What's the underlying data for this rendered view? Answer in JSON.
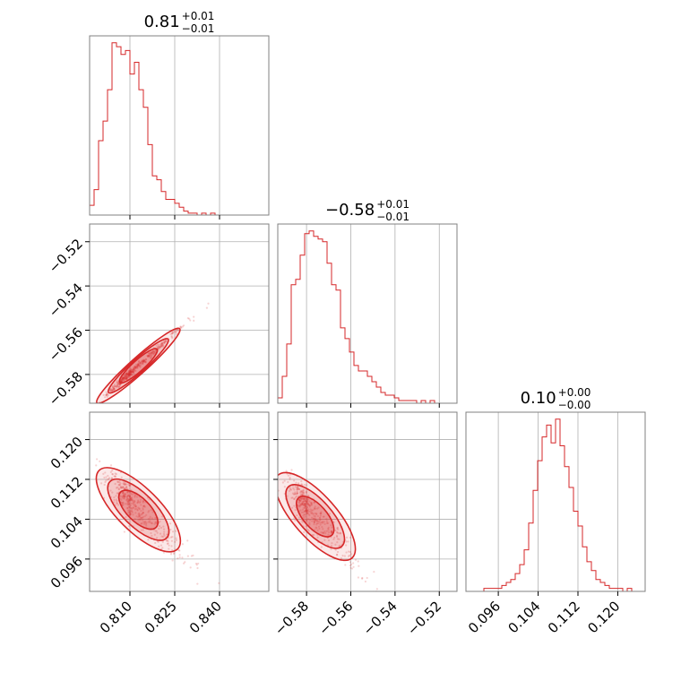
{
  "chart_data": {
    "type": "corner",
    "color": "#d62728",
    "grid": true,
    "parameters": [
      {
        "index": 0,
        "median": "0.81",
        "plus": "+0.01",
        "minus": "−0.01",
        "range": [
          0.7965,
          0.8565
        ],
        "ticks": [
          0.81,
          0.825,
          0.84
        ],
        "tick_labels": [
          "0.810",
          "0.825",
          "0.840"
        ]
      },
      {
        "index": 1,
        "median": "−0.58",
        "plus": "+0.01",
        "minus": "−0.01",
        "range": [
          -0.593,
          -0.512
        ],
        "ticks": [
          -0.58,
          -0.56,
          -0.54,
          -0.52
        ],
        "tick_labels": [
          "−0.58",
          "−0.56",
          "−0.54",
          "−0.52"
        ]
      },
      {
        "index": 2,
        "median": "0.10",
        "plus": "+0.00",
        "minus": "−0.00",
        "range": [
          0.0895,
          0.1255
        ],
        "ticks": [
          0.096,
          0.104,
          0.112,
          0.12
        ],
        "tick_labels": [
          "0.096",
          "0.104",
          "0.112",
          "0.120"
        ]
      }
    ],
    "histograms": [
      {
        "param": 0,
        "counts": [
          5,
          13,
          38,
          48,
          64,
          88,
          86,
          82,
          84,
          72,
          78,
          64,
          55,
          36,
          20,
          18,
          12,
          8,
          8,
          6,
          4,
          2,
          1,
          1,
          0,
          1,
          0,
          1,
          0,
          0,
          0,
          0,
          0,
          0,
          0,
          0,
          0,
          0,
          0,
          0
        ]
      },
      {
        "param": 1,
        "counts": [
          2,
          10,
          22,
          44,
          46,
          55,
          63,
          64,
          62,
          61,
          60,
          52,
          44,
          42,
          28,
          24,
          19,
          14,
          12,
          12,
          10,
          8,
          6,
          4,
          3,
          3,
          2,
          1,
          1,
          1,
          1,
          0,
          1,
          0,
          1,
          0,
          0,
          0,
          0,
          0
        ]
      },
      {
        "param": 2,
        "counts": [
          0,
          0,
          0,
          0,
          1,
          1,
          1,
          1,
          2,
          3,
          4,
          6,
          9,
          14,
          23,
          34,
          44,
          52,
          56,
          50,
          58,
          49,
          42,
          35,
          27,
          22,
          15,
          10,
          7,
          4,
          3,
          2,
          1,
          1,
          1,
          0,
          1,
          0,
          0,
          0
        ]
      }
    ],
    "pairs": [
      {
        "x_param": 0,
        "y_param": 1,
        "relation": "linear",
        "slope": 1.21,
        "intercept": -1.5596
      },
      {
        "x_param": 0,
        "y_param": 2,
        "relation": "anticorrelated",
        "slope": -0.6,
        "intercept": 0.5936
      },
      {
        "x_param": 1,
        "y_param": 2,
        "relation": "anticorrelated",
        "slope": -0.5,
        "intercept": -0.1835
      }
    ]
  }
}
